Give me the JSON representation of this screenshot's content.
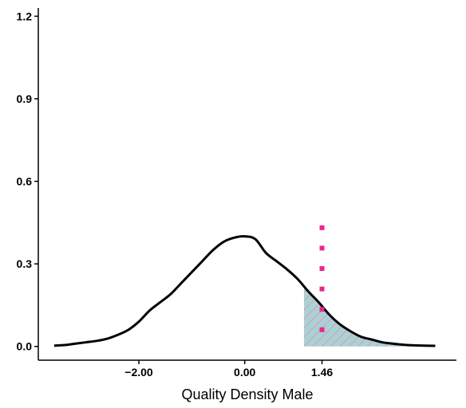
{
  "chart_data": {
    "type": "area",
    "xlabel": "Quality Density Male",
    "ylabel": "",
    "xlim": [
      -3.9,
      4.0
    ],
    "ylim": [
      -0.05,
      1.23
    ],
    "x_ticks": [
      {
        "value": -2.0,
        "label": "−2.00"
      },
      {
        "value": 0.0,
        "label": "0.00"
      },
      {
        "value": 1.46,
        "label": "1.46"
      }
    ],
    "y_ticks": [
      {
        "value": 0.0,
        "label": "0.0"
      },
      {
        "value": 0.3,
        "label": "0.3"
      },
      {
        "value": 0.6,
        "label": "0.6"
      },
      {
        "value": 0.9,
        "label": "0.9"
      },
      {
        "value": 1.2,
        "label": "1.2"
      }
    ],
    "grid": false,
    "series": [
      {
        "kind": "density-curve",
        "color": "#000000",
        "x": [
          -3.6,
          -3.4,
          -3.2,
          -3.0,
          -2.8,
          -2.6,
          -2.4,
          -2.2,
          -2.0,
          -1.8,
          -1.6,
          -1.4,
          -1.2,
          -1.0,
          -0.8,
          -0.6,
          -0.4,
          -0.2,
          0.0,
          0.2,
          0.4,
          0.6,
          0.8,
          1.0,
          1.2,
          1.4,
          1.6,
          1.8,
          2.0,
          2.2,
          2.4,
          2.6,
          2.8,
          3.0,
          3.2,
          3.4,
          3.6
        ],
        "y": [
          0.003,
          0.005,
          0.01,
          0.015,
          0.02,
          0.028,
          0.042,
          0.06,
          0.09,
          0.13,
          0.16,
          0.19,
          0.23,
          0.27,
          0.31,
          0.35,
          0.38,
          0.395,
          0.4,
          0.39,
          0.34,
          0.31,
          0.28,
          0.245,
          0.2,
          0.16,
          0.115,
          0.08,
          0.055,
          0.035,
          0.025,
          0.015,
          0.01,
          0.006,
          0.004,
          0.003,
          0.002
        ]
      }
    ],
    "shaded_region": {
      "x_from": 1.12,
      "x_to": 3.0,
      "fill": "#a7d3d8",
      "hatch_color": "#e89aa8"
    },
    "reference_line": {
      "x": 1.46,
      "y_top": 0.44,
      "color": "#e8288c",
      "style": "dotted"
    }
  }
}
